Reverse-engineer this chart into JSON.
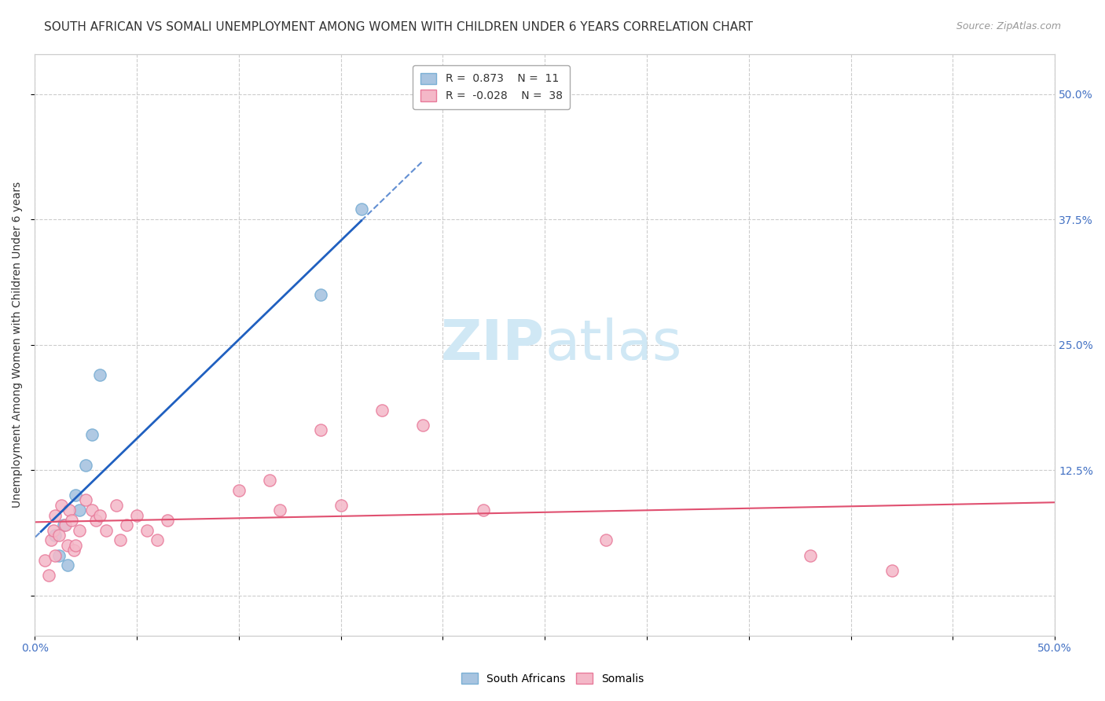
{
  "title": "SOUTH AFRICAN VS SOMALI UNEMPLOYMENT AMONG WOMEN WITH CHILDREN UNDER 6 YEARS CORRELATION CHART",
  "source": "Source: ZipAtlas.com",
  "ylabel": "Unemployment Among Women with Children Under 6 years",
  "xlabel": "",
  "xlim": [
    0.0,
    0.5
  ],
  "ylim": [
    -0.04,
    0.54
  ],
  "background_color": "#ffffff",
  "grid_color": "#cccccc",
  "south_africans": {
    "x": [
      0.01,
      0.012,
      0.014,
      0.016,
      0.02,
      0.022,
      0.025,
      0.028,
      0.032,
      0.14,
      0.16
    ],
    "y": [
      0.06,
      0.04,
      0.07,
      0.03,
      0.1,
      0.085,
      0.13,
      0.16,
      0.22,
      0.3,
      0.385
    ],
    "color": "#a8c4e0",
    "edge_color": "#7aafd4",
    "R": 0.873,
    "N": 11
  },
  "somalis": {
    "x": [
      0.005,
      0.007,
      0.008,
      0.009,
      0.01,
      0.01,
      0.012,
      0.013,
      0.015,
      0.016,
      0.017,
      0.018,
      0.019,
      0.02,
      0.022,
      0.025,
      0.028,
      0.03,
      0.032,
      0.035,
      0.04,
      0.042,
      0.045,
      0.05,
      0.055,
      0.06,
      0.065,
      0.1,
      0.115,
      0.12,
      0.14,
      0.15,
      0.17,
      0.19,
      0.22,
      0.28,
      0.38,
      0.42
    ],
    "y": [
      0.035,
      0.02,
      0.055,
      0.065,
      0.04,
      0.08,
      0.06,
      0.09,
      0.07,
      0.05,
      0.085,
      0.075,
      0.045,
      0.05,
      0.065,
      0.095,
      0.085,
      0.075,
      0.08,
      0.065,
      0.09,
      0.055,
      0.07,
      0.08,
      0.065,
      0.055,
      0.075,
      0.105,
      0.115,
      0.085,
      0.165,
      0.09,
      0.185,
      0.17,
      0.085,
      0.055,
      0.04,
      0.025
    ],
    "color": "#f4b8c8",
    "edge_color": "#e87a9a",
    "R": -0.028,
    "N": 38
  },
  "watermark_zip": "ZIP",
  "watermark_atlas": "atlas",
  "watermark_color": "#d0e8f5",
  "title_fontsize": 11,
  "axis_label_fontsize": 10,
  "tick_fontsize": 10,
  "legend_fontsize": 10,
  "source_fontsize": 9,
  "sa_line_color": "#2060c0",
  "so_line_color": "#e05070"
}
